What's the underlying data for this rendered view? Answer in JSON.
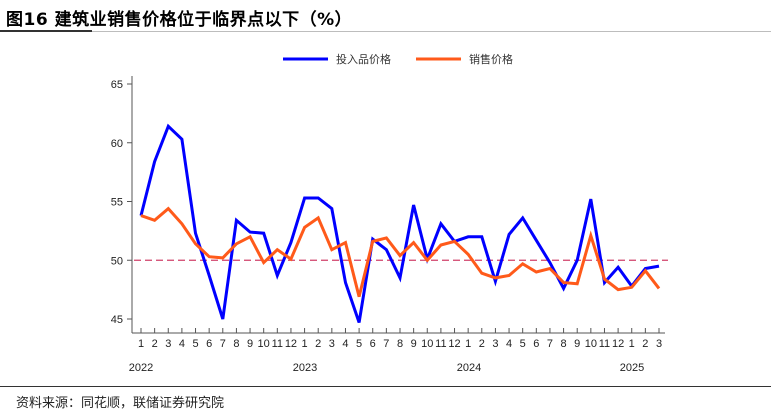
{
  "header": {
    "title": "图16 建筑业销售价格位于临界点以下（%）"
  },
  "footer": {
    "source": "资料来源：同花顺，联储证券研究院"
  },
  "colors": {
    "input_price": "#0000ff",
    "sales_price": "#ff5a1a",
    "threshold": "#d0406a"
  },
  "chart_data": {
    "type": "line",
    "title": "建筑业销售价格位于临界点以下（%）",
    "xlabel": "",
    "ylabel": "",
    "ylim": [
      45,
      65
    ],
    "yticks": [
      45,
      50,
      55,
      60,
      65
    ],
    "grid": false,
    "legend_position": "top",
    "reference_line": {
      "y": 50,
      "style": "dashed"
    },
    "year_labels": [
      {
        "label": "2022",
        "at_index": 0
      },
      {
        "label": "2023",
        "at_index": 12
      },
      {
        "label": "2024",
        "at_index": 24
      },
      {
        "label": "2025",
        "at_index": 36
      }
    ],
    "x": [
      "1",
      "2",
      "3",
      "4",
      "5",
      "6",
      "7",
      "8",
      "9",
      "10",
      "11",
      "12",
      "1",
      "2",
      "3",
      "4",
      "5",
      "6",
      "7",
      "8",
      "9",
      "10",
      "11",
      "12",
      "1",
      "2",
      "3",
      "4",
      "5",
      "6",
      "7",
      "8",
      "9",
      "10",
      "11",
      "12",
      "1",
      "2",
      "3"
    ],
    "dates": [
      "2022-01",
      "2022-02",
      "2022-03",
      "2022-04",
      "2022-05",
      "2022-06",
      "2022-07",
      "2022-08",
      "2022-09",
      "2022-10",
      "2022-11",
      "2022-12",
      "2023-01",
      "2023-02",
      "2023-03",
      "2023-04",
      "2023-05",
      "2023-06",
      "2023-07",
      "2023-08",
      "2023-09",
      "2023-10",
      "2023-11",
      "2023-12",
      "2024-01",
      "2024-02",
      "2024-03",
      "2024-04",
      "2024-05",
      "2024-06",
      "2024-07",
      "2024-08",
      "2024-09",
      "2024-10",
      "2024-11",
      "2024-12",
      "2025-01",
      "2025-02",
      "2025-03"
    ],
    "series": [
      {
        "name": "投入品价格",
        "color": "#0000ff",
        "values": [
          53.8,
          58.4,
          61.4,
          60.3,
          52.3,
          48.7,
          45.0,
          53.4,
          52.4,
          52.3,
          48.7,
          51.5,
          55.3,
          55.3,
          54.4,
          48.1,
          44.7,
          51.8,
          50.9,
          48.5,
          54.7,
          50.1,
          53.1,
          51.6,
          52.0,
          52.0,
          48.2,
          52.2,
          53.6,
          51.7,
          49.8,
          47.6,
          50.0,
          55.2,
          48.1,
          49.4,
          47.8,
          49.3,
          49.5
        ]
      },
      {
        "name": "销售价格",
        "color": "#ff5a1a",
        "values": [
          53.8,
          53.4,
          54.4,
          53.1,
          51.4,
          50.3,
          50.2,
          51.4,
          52.0,
          49.8,
          50.9,
          50.1,
          52.8,
          53.6,
          50.9,
          51.5,
          46.9,
          51.6,
          51.9,
          50.4,
          51.5,
          50.0,
          51.3,
          51.6,
          50.5,
          48.9,
          48.5,
          48.7,
          49.7,
          49.0,
          49.3,
          48.1,
          48.0,
          52.1,
          48.4,
          47.5,
          47.7,
          49.1,
          47.6
        ]
      }
    ]
  }
}
